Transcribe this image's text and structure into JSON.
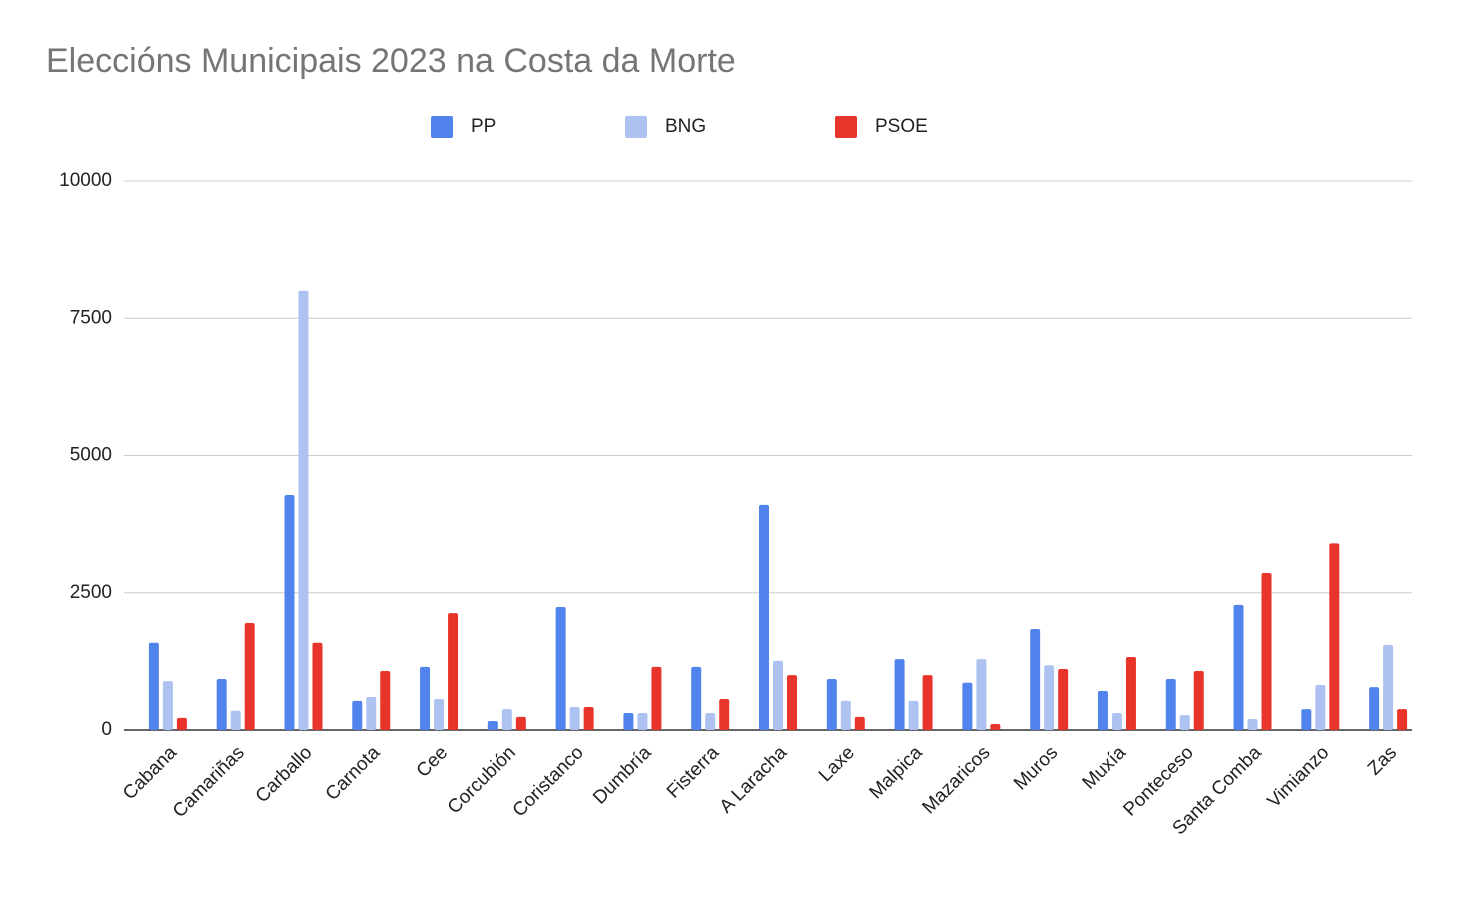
{
  "chart_data": {
    "type": "bar",
    "title": "Eleccións Municipais 2023 na Costa da Morte",
    "categories": [
      "Cabana",
      "Camariñas",
      "Carballo",
      "Carnota",
      "Cee",
      "Corcubión",
      "Coristanco",
      "Dumbría",
      "Fisterra",
      "A Laracha",
      "Laxe",
      "Malpica",
      "Mazaricos",
      "Muros",
      "Muxía",
      "Ponteceso",
      "Santa Comba",
      "Vimianzo",
      "Zas"
    ],
    "series": [
      {
        "name": "PP",
        "color": "#5084ec",
        "values": [
          1590,
          930,
          4280,
          530,
          1150,
          165,
          2240,
          310,
          1150,
          4100,
          930,
          1290,
          860,
          1840,
          710,
          930,
          2280,
          380,
          780
        ]
      },
      {
        "name": "BNG",
        "color": "#adc2f0",
        "values": [
          890,
          350,
          8000,
          600,
          565,
          380,
          420,
          310,
          310,
          1260,
          530,
          530,
          1290,
          1180,
          310,
          270,
          200,
          820,
          1550
        ]
      },
      {
        "name": "PSOE",
        "color": "#e8352b",
        "values": [
          220,
          1950,
          1590,
          1075,
          2130,
          240,
          420,
          1150,
          565,
          1000,
          240,
          1000,
          110,
          1110,
          1330,
          1075,
          2860,
          3400,
          380
        ]
      }
    ],
    "ylim": [
      0,
      10000
    ],
    "yticks": [
      0,
      2500,
      5000,
      7500,
      10000
    ],
    "grid": true,
    "legend": "top"
  }
}
